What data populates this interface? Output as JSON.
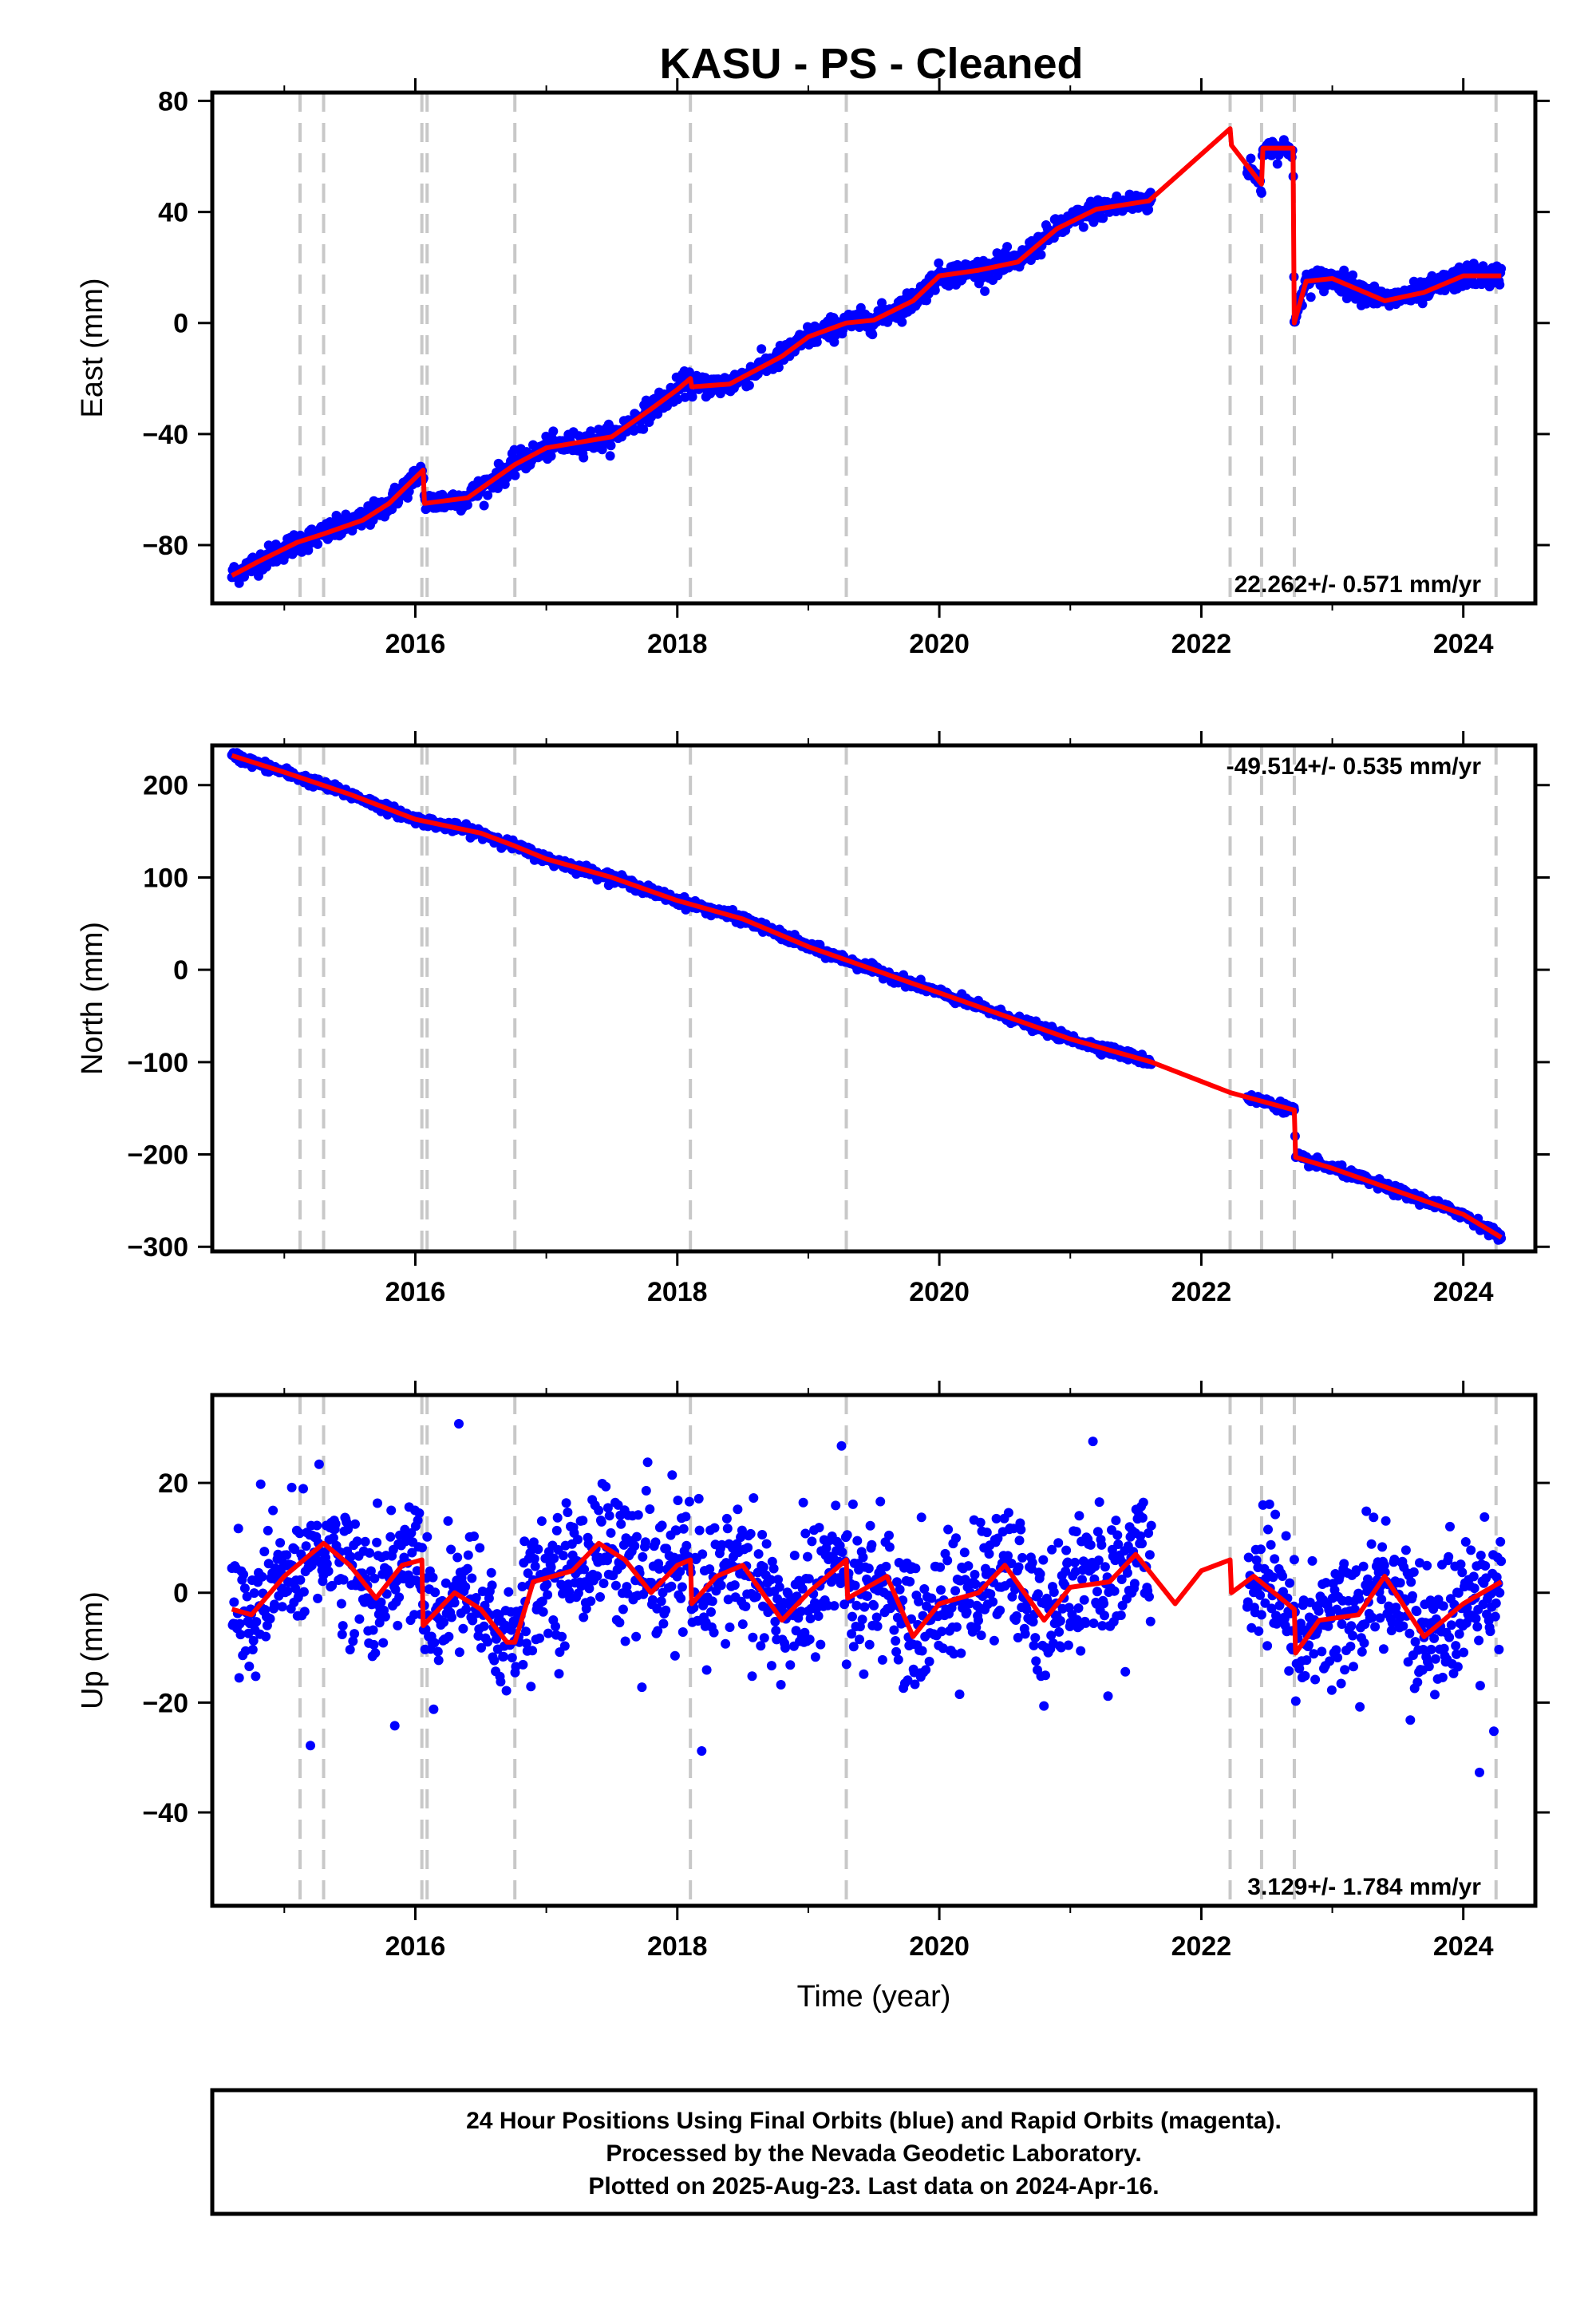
{
  "title": "KASU  - PS - Cleaned",
  "footer": {
    "line1": "24 Hour Positions Using Final Orbits (blue) and Rapid Orbits (magenta).",
    "line2": "Processed by the Nevada Geodetic Laboratory.",
    "line3": "Plotted on 2025-Aug-23. Last data on 2024-Apr-16."
  },
  "colors": {
    "data": "#0000ff",
    "model": "#ff0000",
    "event": "#c8c8c8"
  },
  "chart_data": [
    {
      "type": "scatter",
      "component": "east",
      "ylabel": "East (mm)",
      "xlabel": "",
      "xlim": [
        2014.45,
        2024.55
      ],
      "ylim": [
        -101,
        83
      ],
      "xticks": [
        "2016",
        "2018",
        "2020",
        "2022",
        "2024"
      ],
      "yticks": [
        "-80",
        "-40",
        "0",
        "40",
        "80"
      ],
      "rate_label": "22.262+/- 0.571 mm/yr",
      "rate_position": "bottom-right",
      "event_lines": [
        2015.12,
        2015.3,
        2016.05,
        2016.09,
        2016.76,
        2018.1,
        2019.29,
        2022.22,
        2022.46,
        2022.71,
        2024.25
      ],
      "data_segments": [
        [
          2014.6,
          2021.62
        ],
        [
          2022.35,
          2022.71
        ],
        [
          2022.71,
          2024.29
        ]
      ],
      "scatter": 2.0,
      "model_knots": [
        [
          2014.6,
          -91
        ],
        [
          2014.8,
          -86
        ],
        [
          2015.1,
          -79
        ],
        [
          2015.3,
          -76
        ],
        [
          2015.6,
          -71
        ],
        [
          2015.8,
          -65
        ],
        [
          2016.06,
          -53
        ],
        [
          2016.07,
          -65
        ],
        [
          2016.4,
          -63
        ],
        [
          2016.76,
          -51
        ],
        [
          2017.0,
          -45
        ],
        [
          2017.5,
          -41
        ],
        [
          2017.8,
          -31
        ],
        [
          2018.0,
          -24
        ],
        [
          2018.1,
          -20
        ],
        [
          2018.11,
          -23
        ],
        [
          2018.4,
          -22
        ],
        [
          2018.8,
          -12
        ],
        [
          2019.0,
          -5
        ],
        [
          2019.29,
          0
        ],
        [
          2019.5,
          1
        ],
        [
          2019.8,
          8
        ],
        [
          2020.0,
          17
        ],
        [
          2020.3,
          19
        ],
        [
          2020.6,
          22
        ],
        [
          2020.9,
          34
        ],
        [
          2021.2,
          41
        ],
        [
          2021.6,
          44
        ],
        [
          2022.22,
          70
        ],
        [
          2022.23,
          64
        ],
        [
          2022.46,
          50
        ],
        [
          2022.47,
          63
        ],
        [
          2022.7,
          63
        ],
        [
          2022.71,
          0
        ],
        [
          2022.8,
          15
        ],
        [
          2023.0,
          16
        ],
        [
          2023.4,
          8
        ],
        [
          2023.7,
          11
        ],
        [
          2024.0,
          17
        ],
        [
          2024.29,
          17
        ]
      ]
    },
    {
      "type": "scatter",
      "component": "north",
      "ylabel": "North (mm)",
      "xlabel": "",
      "xlim": [
        2014.45,
        2024.55
      ],
      "ylim": [
        -305,
        243
      ],
      "xticks": [
        "2016",
        "2018",
        "2020",
        "2022",
        "2024"
      ],
      "yticks": [
        "-300",
        "-200",
        "-100",
        "0",
        "100",
        "200"
      ],
      "rate_label": "-49.514+/- 0.535 mm/yr",
      "rate_position": "top-right",
      "event_lines": [
        2015.12,
        2015.3,
        2016.05,
        2016.09,
        2016.76,
        2018.1,
        2019.29,
        2022.22,
        2022.46,
        2022.71,
        2024.25
      ],
      "data_segments": [
        [
          2014.6,
          2021.62
        ],
        [
          2022.35,
          2022.71
        ],
        [
          2022.71,
          2024.29
        ]
      ],
      "scatter": 2.5,
      "model_knots": [
        [
          2014.6,
          232
        ],
        [
          2015.0,
          214
        ],
        [
          2015.5,
          190
        ],
        [
          2016.0,
          163
        ],
        [
          2016.5,
          148
        ],
        [
          2016.76,
          134
        ],
        [
          2017.0,
          120
        ],
        [
          2017.5,
          100
        ],
        [
          2018.0,
          75
        ],
        [
          2018.5,
          55
        ],
        [
          2019.0,
          25
        ],
        [
          2019.5,
          0
        ],
        [
          2020.0,
          -25
        ],
        [
          2020.5,
          -50
        ],
        [
          2021.0,
          -75
        ],
        [
          2021.62,
          -100
        ],
        [
          2022.22,
          -133
        ],
        [
          2022.71,
          -152
        ],
        [
          2022.72,
          -203
        ],
        [
          2023.0,
          -215
        ],
        [
          2023.5,
          -240
        ],
        [
          2024.0,
          -265
        ],
        [
          2024.29,
          -290
        ]
      ]
    },
    {
      "type": "scatter",
      "component": "up",
      "ylabel": "Up (mm)",
      "xlabel": "Time (year)",
      "xlim": [
        2014.45,
        2024.55
      ],
      "ylim": [
        -57,
        36
      ],
      "xticks": [
        "2016",
        "2018",
        "2020",
        "2022",
        "2024"
      ],
      "yticks": [
        "-40",
        "-20",
        "0",
        "20"
      ],
      "rate_label": "3.129+/- 1.784 mm/yr",
      "rate_position": "bottom-right",
      "event_lines": [
        2015.12,
        2015.3,
        2016.05,
        2016.09,
        2016.76,
        2018.1,
        2019.29,
        2022.22,
        2022.46,
        2022.71,
        2024.25
      ],
      "data_segments": [
        [
          2014.6,
          2021.62
        ],
        [
          2022.35,
          2022.71
        ],
        [
          2022.71,
          2024.29
        ]
      ],
      "scatter": 6.0,
      "model_knots": [
        [
          2014.6,
          -3
        ],
        [
          2014.75,
          -4
        ],
        [
          2015.0,
          3
        ],
        [
          2015.3,
          9
        ],
        [
          2015.5,
          5
        ],
        [
          2015.7,
          -1
        ],
        [
          2015.9,
          5
        ],
        [
          2016.05,
          6
        ],
        [
          2016.06,
          -6
        ],
        [
          2016.3,
          0
        ],
        [
          2016.5,
          -3
        ],
        [
          2016.7,
          -9
        ],
        [
          2016.76,
          -9
        ],
        [
          2016.9,
          2
        ],
        [
          2017.2,
          4
        ],
        [
          2017.4,
          9
        ],
        [
          2017.6,
          6
        ],
        [
          2017.8,
          0
        ],
        [
          2018.0,
          5
        ],
        [
          2018.1,
          6
        ],
        [
          2018.11,
          -2
        ],
        [
          2018.3,
          3
        ],
        [
          2018.5,
          5
        ],
        [
          2018.8,
          -5
        ],
        [
          2019.0,
          0
        ],
        [
          2019.29,
          6
        ],
        [
          2019.3,
          -1
        ],
        [
          2019.6,
          3
        ],
        [
          2019.8,
          -8
        ],
        [
          2020.0,
          -2
        ],
        [
          2020.3,
          0
        ],
        [
          2020.5,
          5
        ],
        [
          2020.8,
          -5
        ],
        [
          2021.0,
          1
        ],
        [
          2021.3,
          2
        ],
        [
          2021.5,
          7
        ],
        [
          2021.8,
          -2
        ],
        [
          2022.0,
          4
        ],
        [
          2022.22,
          6
        ],
        [
          2022.23,
          0
        ],
        [
          2022.4,
          3
        ],
        [
          2022.71,
          -3
        ],
        [
          2022.72,
          -11
        ],
        [
          2022.9,
          -5
        ],
        [
          2023.2,
          -4
        ],
        [
          2023.4,
          3
        ],
        [
          2023.7,
          -8
        ],
        [
          2024.0,
          -2
        ],
        [
          2024.29,
          2
        ]
      ]
    }
  ]
}
